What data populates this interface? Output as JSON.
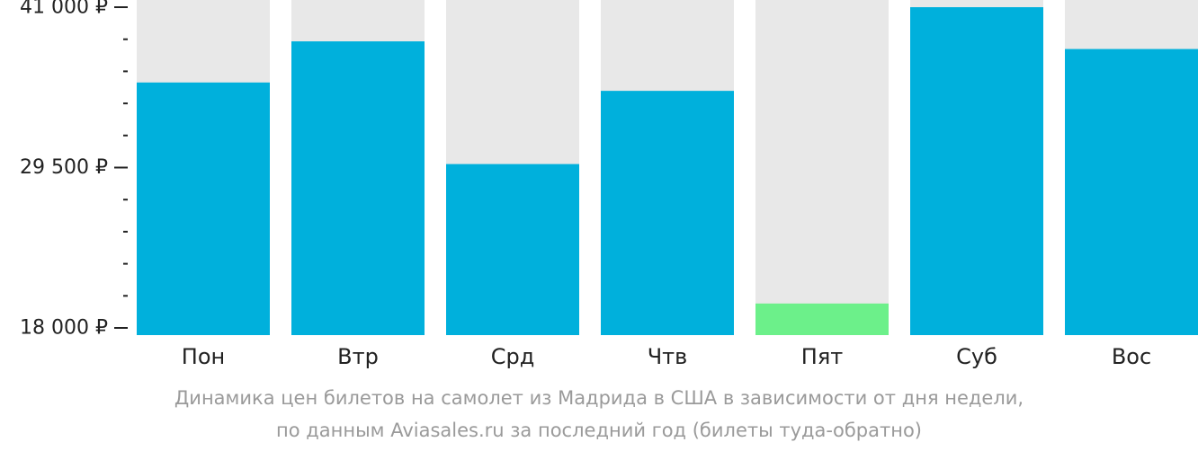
{
  "chart_data": {
    "type": "bar",
    "categories": [
      "Пон",
      "Втр",
      "Срд",
      "Чтв",
      "Пят",
      "Суб",
      "Вос"
    ],
    "values": [
      35600,
      38550,
      29750,
      35000,
      19750,
      41000,
      38000
    ],
    "ylim": [
      18000,
      41000
    ],
    "yticks": [
      {
        "value": 41000,
        "label": "41 000 ₽"
      },
      {
        "value": 29500,
        "label": "29 500 ₽"
      },
      {
        "value": 18000,
        "label": "18 000 ₽"
      }
    ],
    "minor_tick_step": 2300,
    "highlight_index": 4,
    "colors": {
      "bar": "#00b0dc",
      "highlight": "#6cf08a",
      "track": "#e8e8e8",
      "axis": "#222222"
    },
    "caption": [
      "Динамика цен билетов на самолет из Мадрида в США в зависимости от дня недели,",
      "по данным Aviasales.ru за последний год (билеты туда-обратно)"
    ]
  }
}
